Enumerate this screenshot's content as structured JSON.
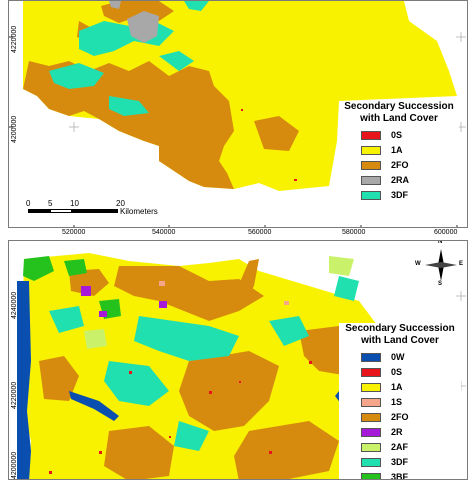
{
  "top_map": {
    "legend": {
      "title_line1": "Secondary Succession",
      "title_line2": "with Land Cover",
      "items": [
        {
          "label": "0S",
          "color": "#e8141b"
        },
        {
          "label": "1A",
          "color": "#f8f200"
        },
        {
          "label": "2FO",
          "color": "#d68b0e"
        },
        {
          "label": "2RA",
          "color": "#a8a8a8"
        },
        {
          "label": "3DF",
          "color": "#20e0b0"
        }
      ]
    },
    "x_ticks": [
      "520000",
      "540000",
      "560000",
      "580000",
      "600000"
    ],
    "y_ticks": [
      "4220000",
      "4200000"
    ],
    "scalebar": {
      "labels": [
        "0",
        "5",
        "10",
        "20"
      ],
      "unit": "Kilometers"
    }
  },
  "bottom_map": {
    "legend": {
      "title_line1": "Secondary Succession",
      "title_line2": "with Land Cover",
      "items": [
        {
          "label": "0W",
          "color": "#0a4fb0"
        },
        {
          "label": "0S",
          "color": "#e8141b"
        },
        {
          "label": "1A",
          "color": "#f8f200"
        },
        {
          "label": "1S",
          "color": "#f5a58a"
        },
        {
          "label": "2FO",
          "color": "#d68b0e"
        },
        {
          "label": "2R",
          "color": "#a619d8"
        },
        {
          "label": "2AF",
          "color": "#c9f26a"
        },
        {
          "label": "3DF",
          "color": "#20e0b0"
        },
        {
          "label": "3BF",
          "color": "#25c21e"
        }
      ]
    },
    "y_ticks": [
      "4240000",
      "4220000",
      "4200000"
    ],
    "north_arrow": {
      "n": "N",
      "s": "S",
      "e": "E",
      "w": "W"
    }
  },
  "colors": {
    "water": "#0a4fb0",
    "agriculture": "#f8f200",
    "forest": "#d68b0e",
    "dense_forest": "#20e0b0",
    "range": "#a8a8a8",
    "settlement": "#e8141b",
    "grass": "#25c21e",
    "purple": "#a619d8",
    "pink": "#f5a58a",
    "lime": "#c9f26a"
  }
}
